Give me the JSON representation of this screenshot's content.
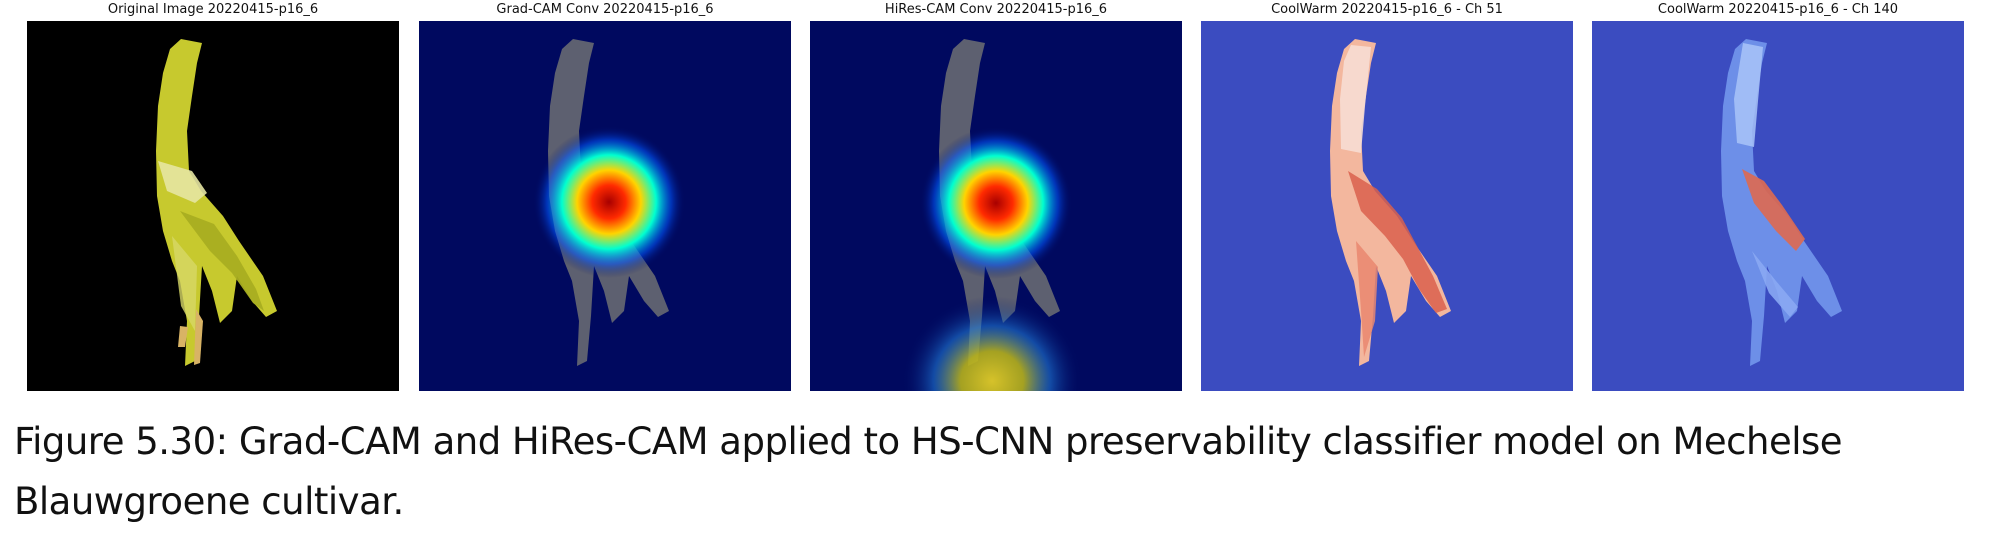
{
  "figure": {
    "panels": [
      {
        "title": "Original Image 20220415-p16_6",
        "background": "#000000",
        "colors": {
          "leaf_main": "#c7c92e",
          "leaf_light": "#e5e6a2",
          "leaf_dark": "#8f9315"
        }
      },
      {
        "title": "Grad-CAM Conv 20220415-p16_6",
        "background": "#00095f",
        "colors": {
          "leaf": "#5d6070",
          "hot": "#a80000",
          "warm": "#ffd400",
          "cool": "#00ffd0"
        }
      },
      {
        "title": "HiRes-CAM Conv 20220415-p16_6",
        "background": "#00095f",
        "colors": {
          "leaf": "#5d6070",
          "hot": "#a80000",
          "warm": "#ffd400",
          "cool": "#00ffd0",
          "bottom_glow": "#d6c22a"
        }
      },
      {
        "title": "CoolWarm 20220415-p16_6 - Ch 51",
        "background": "#3b4cc0",
        "colors": {
          "leaf_main": "#f3b79e",
          "leaf_light": "#f7ddd3",
          "leaf_dark": "#d9604c"
        }
      },
      {
        "title": "CoolWarm 20220415-p16_6 - Ch 140",
        "background": "#3b4cc0",
        "colors": {
          "leaf_main": "#6d8fe8",
          "leaf_light": "#a9c4f8",
          "leaf_dark": "#dc6a52"
        }
      }
    ],
    "caption": "Figure 5.30: Grad-CAM and HiRes-CAM applied to HS-CNN preservability classifier model on Mechelse Blauwgroene cultivar."
  }
}
